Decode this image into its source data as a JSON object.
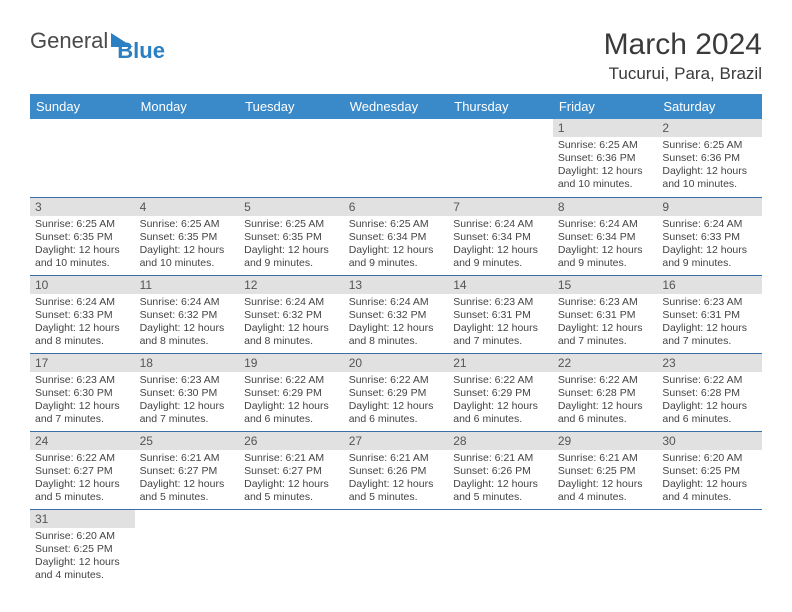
{
  "logo": {
    "text1": "General",
    "text2": "Blue"
  },
  "title": "March 2024",
  "location": "Tucurui, Para, Brazil",
  "colors": {
    "header_bg": "#3a89c9",
    "header_text": "#ffffff",
    "daynum_bg": "#e1e1e1",
    "row_border": "#3a6fa5",
    "logo_gray": "#4a4a4a",
    "logo_blue": "#2b7fc3",
    "body_text": "#444444"
  },
  "headers": [
    "Sunday",
    "Monday",
    "Tuesday",
    "Wednesday",
    "Thursday",
    "Friday",
    "Saturday"
  ],
  "layout": {
    "columns": 7,
    "rows": 6,
    "first_weekday_index": 5,
    "days_in_month": 31
  },
  "days": {
    "1": {
      "sunrise": "6:25 AM",
      "sunset": "6:36 PM",
      "daylight": "12 hours and 10 minutes."
    },
    "2": {
      "sunrise": "6:25 AM",
      "sunset": "6:36 PM",
      "daylight": "12 hours and 10 minutes."
    },
    "3": {
      "sunrise": "6:25 AM",
      "sunset": "6:35 PM",
      "daylight": "12 hours and 10 minutes."
    },
    "4": {
      "sunrise": "6:25 AM",
      "sunset": "6:35 PM",
      "daylight": "12 hours and 10 minutes."
    },
    "5": {
      "sunrise": "6:25 AM",
      "sunset": "6:35 PM",
      "daylight": "12 hours and 9 minutes."
    },
    "6": {
      "sunrise": "6:25 AM",
      "sunset": "6:34 PM",
      "daylight": "12 hours and 9 minutes."
    },
    "7": {
      "sunrise": "6:24 AM",
      "sunset": "6:34 PM",
      "daylight": "12 hours and 9 minutes."
    },
    "8": {
      "sunrise": "6:24 AM",
      "sunset": "6:34 PM",
      "daylight": "12 hours and 9 minutes."
    },
    "9": {
      "sunrise": "6:24 AM",
      "sunset": "6:33 PM",
      "daylight": "12 hours and 9 minutes."
    },
    "10": {
      "sunrise": "6:24 AM",
      "sunset": "6:33 PM",
      "daylight": "12 hours and 8 minutes."
    },
    "11": {
      "sunrise": "6:24 AM",
      "sunset": "6:32 PM",
      "daylight": "12 hours and 8 minutes."
    },
    "12": {
      "sunrise": "6:24 AM",
      "sunset": "6:32 PM",
      "daylight": "12 hours and 8 minutes."
    },
    "13": {
      "sunrise": "6:24 AM",
      "sunset": "6:32 PM",
      "daylight": "12 hours and 8 minutes."
    },
    "14": {
      "sunrise": "6:23 AM",
      "sunset": "6:31 PM",
      "daylight": "12 hours and 7 minutes."
    },
    "15": {
      "sunrise": "6:23 AM",
      "sunset": "6:31 PM",
      "daylight": "12 hours and 7 minutes."
    },
    "16": {
      "sunrise": "6:23 AM",
      "sunset": "6:31 PM",
      "daylight": "12 hours and 7 minutes."
    },
    "17": {
      "sunrise": "6:23 AM",
      "sunset": "6:30 PM",
      "daylight": "12 hours and 7 minutes."
    },
    "18": {
      "sunrise": "6:23 AM",
      "sunset": "6:30 PM",
      "daylight": "12 hours and 7 minutes."
    },
    "19": {
      "sunrise": "6:22 AM",
      "sunset": "6:29 PM",
      "daylight": "12 hours and 6 minutes."
    },
    "20": {
      "sunrise": "6:22 AM",
      "sunset": "6:29 PM",
      "daylight": "12 hours and 6 minutes."
    },
    "21": {
      "sunrise": "6:22 AM",
      "sunset": "6:29 PM",
      "daylight": "12 hours and 6 minutes."
    },
    "22": {
      "sunrise": "6:22 AM",
      "sunset": "6:28 PM",
      "daylight": "12 hours and 6 minutes."
    },
    "23": {
      "sunrise": "6:22 AM",
      "sunset": "6:28 PM",
      "daylight": "12 hours and 6 minutes."
    },
    "24": {
      "sunrise": "6:22 AM",
      "sunset": "6:27 PM",
      "daylight": "12 hours and 5 minutes."
    },
    "25": {
      "sunrise": "6:21 AM",
      "sunset": "6:27 PM",
      "daylight": "12 hours and 5 minutes."
    },
    "26": {
      "sunrise": "6:21 AM",
      "sunset": "6:27 PM",
      "daylight": "12 hours and 5 minutes."
    },
    "27": {
      "sunrise": "6:21 AM",
      "sunset": "6:26 PM",
      "daylight": "12 hours and 5 minutes."
    },
    "28": {
      "sunrise": "6:21 AM",
      "sunset": "6:26 PM",
      "daylight": "12 hours and 5 minutes."
    },
    "29": {
      "sunrise": "6:21 AM",
      "sunset": "6:25 PM",
      "daylight": "12 hours and 4 minutes."
    },
    "30": {
      "sunrise": "6:20 AM",
      "sunset": "6:25 PM",
      "daylight": "12 hours and 4 minutes."
    },
    "31": {
      "sunrise": "6:20 AM",
      "sunset": "6:25 PM",
      "daylight": "12 hours and 4 minutes."
    }
  },
  "labels": {
    "sunrise": "Sunrise:",
    "sunset": "Sunset:",
    "daylight": "Daylight:"
  }
}
